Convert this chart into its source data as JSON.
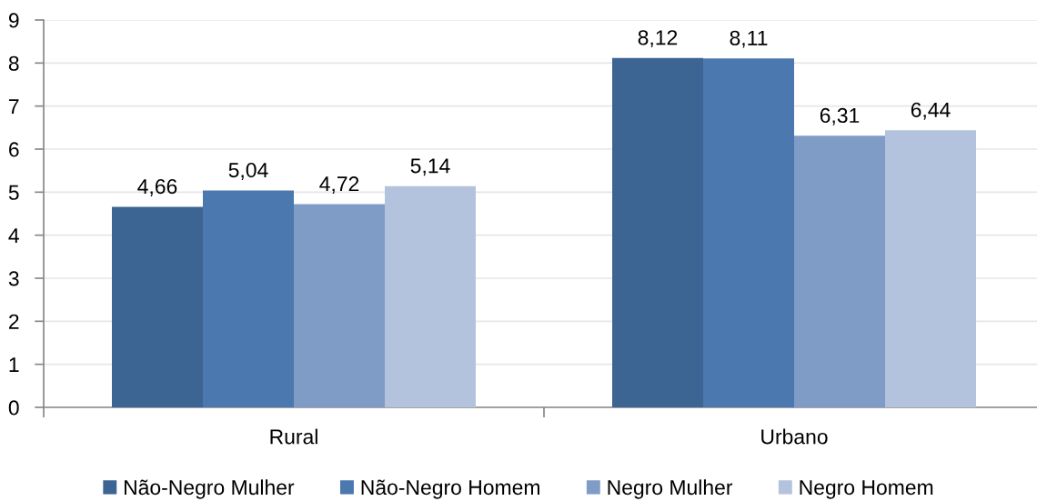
{
  "chart_data": {
    "type": "bar",
    "categories": [
      "Rural",
      "Urbano"
    ],
    "series": [
      {
        "name": "Não-Negro Mulher",
        "color": "#3d6594",
        "values": [
          4.66,
          8.12
        ],
        "value_labels": [
          "4,66",
          "8,12"
        ]
      },
      {
        "name": "Não-Negro Homem",
        "color": "#4a78af",
        "values": [
          5.04,
          8.11
        ],
        "value_labels": [
          "5,04",
          "8,11"
        ]
      },
      {
        "name": "Negro Mulher",
        "color": "#7f9cc7",
        "values": [
          4.72,
          6.31
        ],
        "value_labels": [
          "4,72",
          "6,31"
        ]
      },
      {
        "name": "Negro Homem",
        "color": "#b4c3dd",
        "values": [
          5.14,
          6.44
        ],
        "value_labels": [
          "5,14",
          "6,44"
        ]
      }
    ],
    "ylim": [
      0,
      9
    ],
    "yticks": [
      0,
      1,
      2,
      3,
      4,
      5,
      6,
      7,
      8,
      9
    ],
    "grid": "y",
    "legend": "bottom"
  }
}
